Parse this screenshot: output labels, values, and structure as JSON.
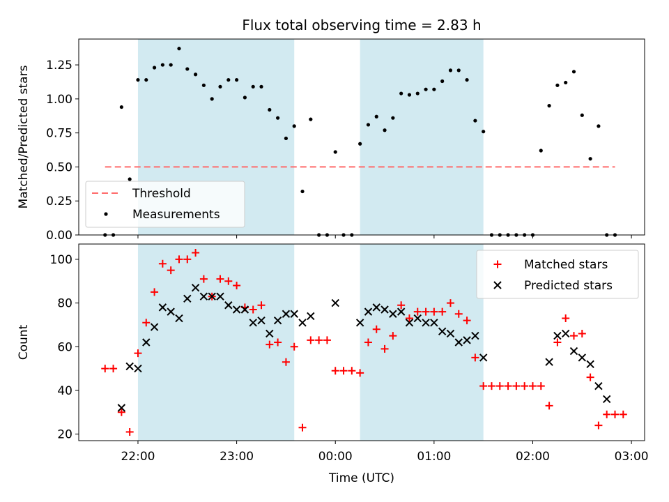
{
  "chart_data": [
    {
      "type": "scatter",
      "title": "Flux total observing time = 2.83 h",
      "ylabel": "Matched/Predicted stars",
      "xlabel": "",
      "x_ticks": [
        "22:00",
        "23:00",
        "00:00",
        "01:00",
        "02:00",
        "03:00"
      ],
      "y_ticks": [
        "0.00",
        "0.25",
        "0.50",
        "0.75",
        "1.00",
        "1.25"
      ],
      "ylim": [
        0,
        1.44
      ],
      "xlim_minutes_from_2200": [
        -36,
        308
      ],
      "shaded_intervals_minutes_from_2200": [
        [
          0,
          95
        ],
        [
          135,
          210
        ]
      ],
      "shade_color": "#add8e6",
      "threshold": {
        "name": "Threshold",
        "value": 0.5,
        "x_range_minutes_from_2200": [
          -20,
          290
        ],
        "color": "#ff6b6b"
      },
      "legend": {
        "placement": "lower-left",
        "entries": [
          "Threshold",
          "Measurements"
        ]
      },
      "series": [
        {
          "name": "Measurements",
          "marker": "dot",
          "color": "#000000",
          "points": [
            [
              -20,
              0.0
            ],
            [
              -15,
              0.0
            ],
            [
              -10,
              0.94
            ],
            [
              -5,
              0.41
            ],
            [
              0,
              1.14
            ],
            [
              5,
              1.14
            ],
            [
              10,
              1.23
            ],
            [
              15,
              1.25
            ],
            [
              20,
              1.25
            ],
            [
              25,
              1.37
            ],
            [
              30,
              1.22
            ],
            [
              35,
              1.18
            ],
            [
              40,
              1.1
            ],
            [
              45,
              1.0
            ],
            [
              50,
              1.09
            ],
            [
              55,
              1.14
            ],
            [
              60,
              1.14
            ],
            [
              65,
              1.01
            ],
            [
              70,
              1.09
            ],
            [
              75,
              1.09
            ],
            [
              80,
              0.92
            ],
            [
              85,
              0.86
            ],
            [
              90,
              0.71
            ],
            [
              95,
              0.8
            ],
            [
              100,
              0.32
            ],
            [
              105,
              0.85
            ],
            [
              110,
              0.0
            ],
            [
              115,
              0.0
            ],
            [
              120,
              0.61
            ],
            [
              125,
              0.0
            ],
            [
              130,
              0.0
            ],
            [
              135,
              0.67
            ],
            [
              140,
              0.81
            ],
            [
              145,
              0.87
            ],
            [
              150,
              0.77
            ],
            [
              155,
              0.86
            ],
            [
              160,
              1.04
            ],
            [
              165,
              1.03
            ],
            [
              170,
              1.04
            ],
            [
              175,
              1.07
            ],
            [
              180,
              1.07
            ],
            [
              185,
              1.13
            ],
            [
              190,
              1.21
            ],
            [
              195,
              1.21
            ],
            [
              200,
              1.14
            ],
            [
              205,
              0.84
            ],
            [
              210,
              0.76
            ],
            [
              215,
              0.0
            ],
            [
              220,
              0.0
            ],
            [
              225,
              0.0
            ],
            [
              230,
              0.0
            ],
            [
              235,
              0.0
            ],
            [
              240,
              0.0
            ],
            [
              245,
              0.62
            ],
            [
              250,
              0.95
            ],
            [
              255,
              1.1
            ],
            [
              260,
              1.12
            ],
            [
              265,
              1.2
            ],
            [
              270,
              0.88
            ],
            [
              275,
              0.56
            ],
            [
              280,
              0.8
            ],
            [
              285,
              0.0
            ],
            [
              290,
              0.0
            ]
          ]
        }
      ]
    },
    {
      "type": "scatter",
      "title": "",
      "ylabel": "Count",
      "xlabel": "Time (UTC)",
      "x_ticks": [
        "22:00",
        "23:00",
        "00:00",
        "01:00",
        "02:00",
        "03:00"
      ],
      "y_ticks": [
        "20",
        "40",
        "60",
        "80",
        "100"
      ],
      "ylim": [
        17,
        107
      ],
      "xlim_minutes_from_2200": [
        -36,
        308
      ],
      "shaded_intervals_minutes_from_2200": [
        [
          0,
          95
        ],
        [
          135,
          210
        ]
      ],
      "shade_color": "#add8e6",
      "legend": {
        "placement": "top-right",
        "entries": [
          "Matched stars",
          "Predicted stars"
        ]
      },
      "series": [
        {
          "name": "Matched stars",
          "marker": "plus",
          "color": "#ff0000",
          "points": [
            [
              -20,
              50
            ],
            [
              -15,
              50
            ],
            [
              -10,
              30
            ],
            [
              -5,
              21
            ],
            [
              0,
              57
            ],
            [
              5,
              71
            ],
            [
              10,
              85
            ],
            [
              15,
              98
            ],
            [
              20,
              95
            ],
            [
              25,
              100
            ],
            [
              30,
              100
            ],
            [
              35,
              103
            ],
            [
              40,
              91
            ],
            [
              45,
              83
            ],
            [
              50,
              91
            ],
            [
              55,
              90
            ],
            [
              60,
              88
            ],
            [
              65,
              78
            ],
            [
              70,
              77
            ],
            [
              75,
              79
            ],
            [
              80,
              61
            ],
            [
              85,
              62
            ],
            [
              90,
              53
            ],
            [
              95,
              60
            ],
            [
              100,
              23
            ],
            [
              105,
              63
            ],
            [
              110,
              63
            ],
            [
              115,
              63
            ],
            [
              120,
              49
            ],
            [
              125,
              49
            ],
            [
              130,
              49
            ],
            [
              135,
              48
            ],
            [
              140,
              62
            ],
            [
              145,
              68
            ],
            [
              150,
              59
            ],
            [
              155,
              65
            ],
            [
              160,
              79
            ],
            [
              165,
              73
            ],
            [
              170,
              76
            ],
            [
              175,
              76
            ],
            [
              180,
              76
            ],
            [
              185,
              76
            ],
            [
              190,
              80
            ],
            [
              195,
              75
            ],
            [
              200,
              72
            ],
            [
              205,
              55
            ],
            [
              210,
              42
            ],
            [
              215,
              42
            ],
            [
              220,
              42
            ],
            [
              225,
              42
            ],
            [
              230,
              42
            ],
            [
              235,
              42
            ],
            [
              240,
              42
            ],
            [
              245,
              42
            ],
            [
              250,
              33
            ],
            [
              255,
              62
            ],
            [
              260,
              73
            ],
            [
              265,
              65
            ],
            [
              270,
              66
            ],
            [
              275,
              46
            ],
            [
              280,
              24
            ],
            [
              285,
              29
            ],
            [
              290,
              29
            ],
            [
              295,
              29
            ]
          ]
        },
        {
          "name": "Predicted stars",
          "marker": "x",
          "color": "#000000",
          "points": [
            [
              -10,
              32
            ],
            [
              -5,
              51
            ],
            [
              0,
              50
            ],
            [
              5,
              62
            ],
            [
              10,
              69
            ],
            [
              15,
              78
            ],
            [
              20,
              76
            ],
            [
              25,
              73
            ],
            [
              30,
              82
            ],
            [
              35,
              87
            ],
            [
              40,
              83
            ],
            [
              45,
              83
            ],
            [
              50,
              83
            ],
            [
              55,
              79
            ],
            [
              60,
              77
            ],
            [
              65,
              77
            ],
            [
              70,
              71
            ],
            [
              75,
              72
            ],
            [
              80,
              66
            ],
            [
              85,
              72
            ],
            [
              90,
              75
            ],
            [
              95,
              75
            ],
            [
              100,
              71
            ],
            [
              105,
              74
            ],
            [
              120,
              80
            ],
            [
              135,
              71
            ],
            [
              140,
              76
            ],
            [
              145,
              78
            ],
            [
              150,
              77
            ],
            [
              155,
              75
            ],
            [
              160,
              76
            ],
            [
              165,
              71
            ],
            [
              170,
              73
            ],
            [
              175,
              71
            ],
            [
              180,
              71
            ],
            [
              185,
              67
            ],
            [
              190,
              66
            ],
            [
              195,
              62
            ],
            [
              200,
              63
            ],
            [
              205,
              65
            ],
            [
              210,
              55
            ],
            [
              250,
              53
            ],
            [
              255,
              65
            ],
            [
              260,
              66
            ],
            [
              265,
              58
            ],
            [
              270,
              55
            ],
            [
              275,
              52
            ],
            [
              280,
              42
            ],
            [
              285,
              36
            ]
          ]
        }
      ]
    }
  ]
}
